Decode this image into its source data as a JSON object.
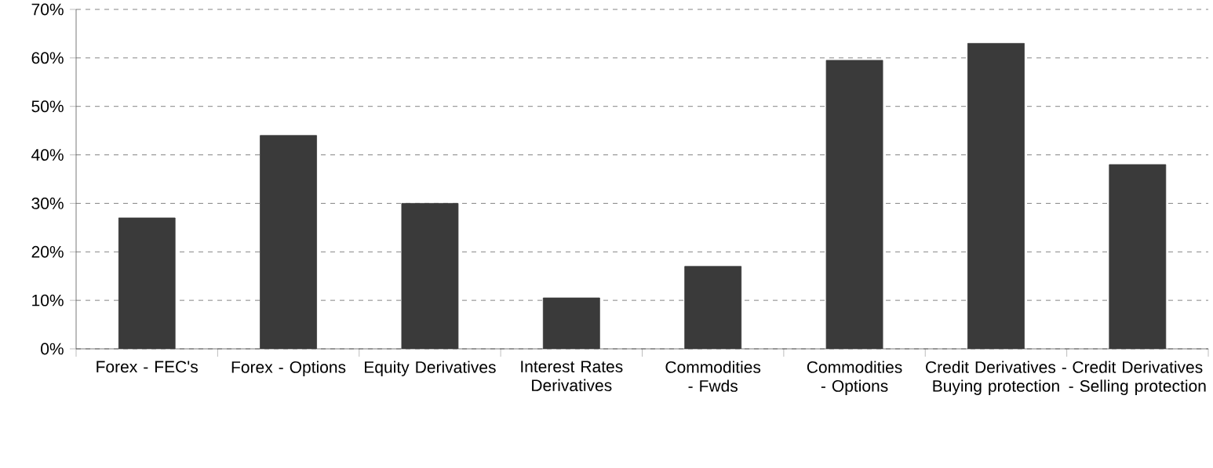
{
  "chart_data": {
    "type": "bar",
    "categories": [
      "Forex - FEC's",
      "Forex - Options",
      "Equity Derivatives",
      "Interest Rates Derivatives",
      "Commodities - Fwds",
      "Commodities - Options",
      "Credit Derivatives - Buying protection",
      "Credit Derivatives - Selling protection"
    ],
    "values": [
      27,
      44,
      30,
      10.5,
      17,
      59.5,
      63,
      38
    ],
    "color": "#3a3a3a",
    "ylim": [
      0,
      70
    ],
    "yticks": [
      {
        "value": 0,
        "label": "0%"
      },
      {
        "value": 10,
        "label": "10%"
      },
      {
        "value": 20,
        "label": "20%"
      },
      {
        "value": 30,
        "label": "30%"
      },
      {
        "value": 40,
        "label": "40%"
      },
      {
        "value": 50,
        "label": "50%"
      },
      {
        "value": 60,
        "label": "60%"
      },
      {
        "value": 70,
        "label": "70%"
      }
    ],
    "grid": "y"
  }
}
